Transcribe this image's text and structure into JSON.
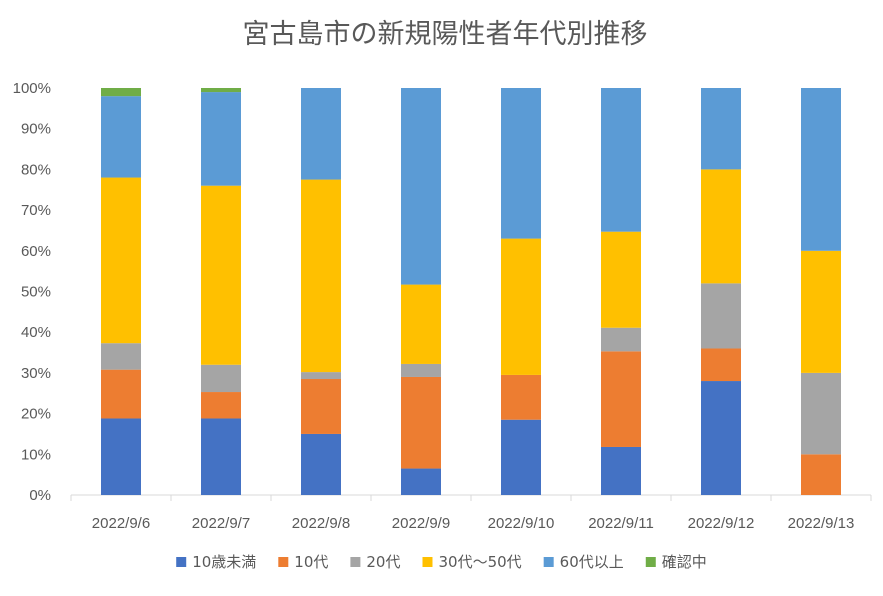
{
  "chart_data": {
    "type": "bar",
    "stacked": true,
    "normalized": true,
    "title": "宮古島市の新規陽性者年代別推移",
    "xlabel": "",
    "ylabel": "",
    "ylim": [
      0,
      100
    ],
    "ytick_step": 10,
    "ytick_suffix": "%",
    "grid": false,
    "legend_position": "bottom",
    "categories": [
      "2022/9/6",
      "2022/9/7",
      "2022/9/8",
      "2022/9/9",
      "2022/9/10",
      "2022/9/11",
      "2022/9/12",
      "2022/9/13"
    ],
    "series": [
      {
        "name": "10歳未満",
        "color": "#4472c4",
        "values": [
          18.8,
          18.8,
          15.0,
          6.5,
          18.5,
          11.8,
          28.0,
          0.0
        ]
      },
      {
        "name": "10代",
        "color": "#ed7d31",
        "values": [
          12.0,
          6.5,
          13.5,
          22.5,
          11.0,
          23.5,
          8.0,
          10.0
        ]
      },
      {
        "name": "20代",
        "color": "#a5a5a5",
        "values": [
          6.5,
          6.7,
          1.7,
          3.2,
          0.0,
          5.8,
          16.0,
          20.0
        ]
      },
      {
        "name": "30代〜50代",
        "color": "#ffc000",
        "values": [
          40.7,
          44.0,
          47.3,
          19.5,
          33.5,
          23.6,
          28.0,
          30.0
        ]
      },
      {
        "name": "60代以上",
        "color": "#5b9bd5",
        "values": [
          20.0,
          23.0,
          22.5,
          48.3,
          37.0,
          35.3,
          20.0,
          40.0
        ]
      },
      {
        "name": "確認中",
        "color": "#70ad47",
        "values": [
          2.0,
          1.0,
          0.0,
          0.0,
          0.0,
          0.0,
          0.0,
          0.0
        ]
      }
    ]
  }
}
